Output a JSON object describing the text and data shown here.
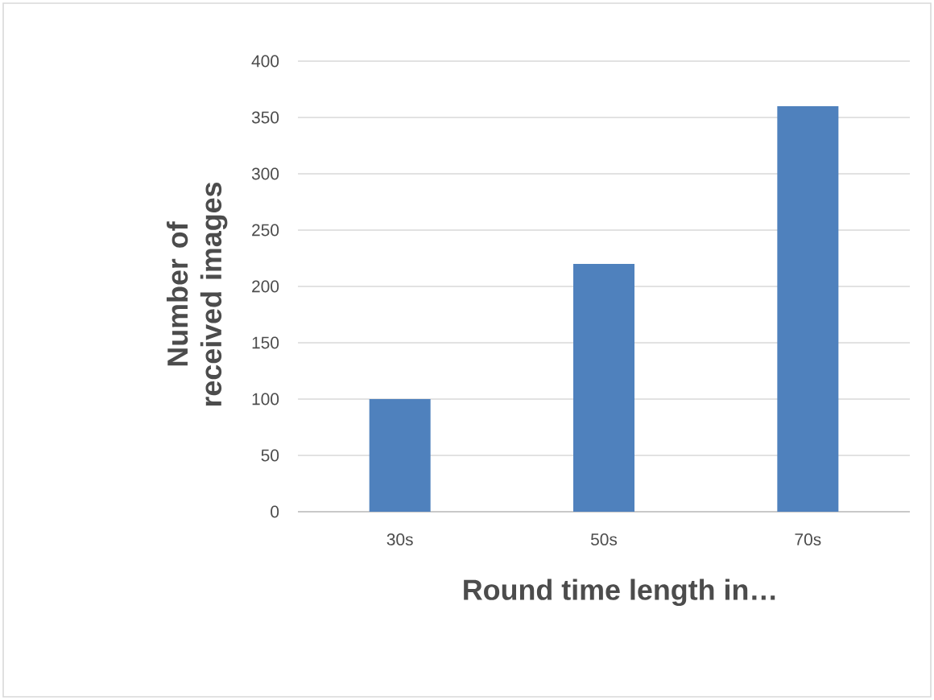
{
  "chart_data": {
    "type": "bar",
    "xlabel": "Round time length in…",
    "ylabel": "Number of received images",
    "categories": [
      "30s",
      "50s",
      "70s"
    ],
    "values": [
      100,
      220,
      360
    ],
    "color": "#4f81bd",
    "ylim": [
      0,
      400
    ],
    "yticks": [
      0,
      50,
      100,
      150,
      200,
      250,
      300,
      350,
      400
    ],
    "grid": "y"
  }
}
